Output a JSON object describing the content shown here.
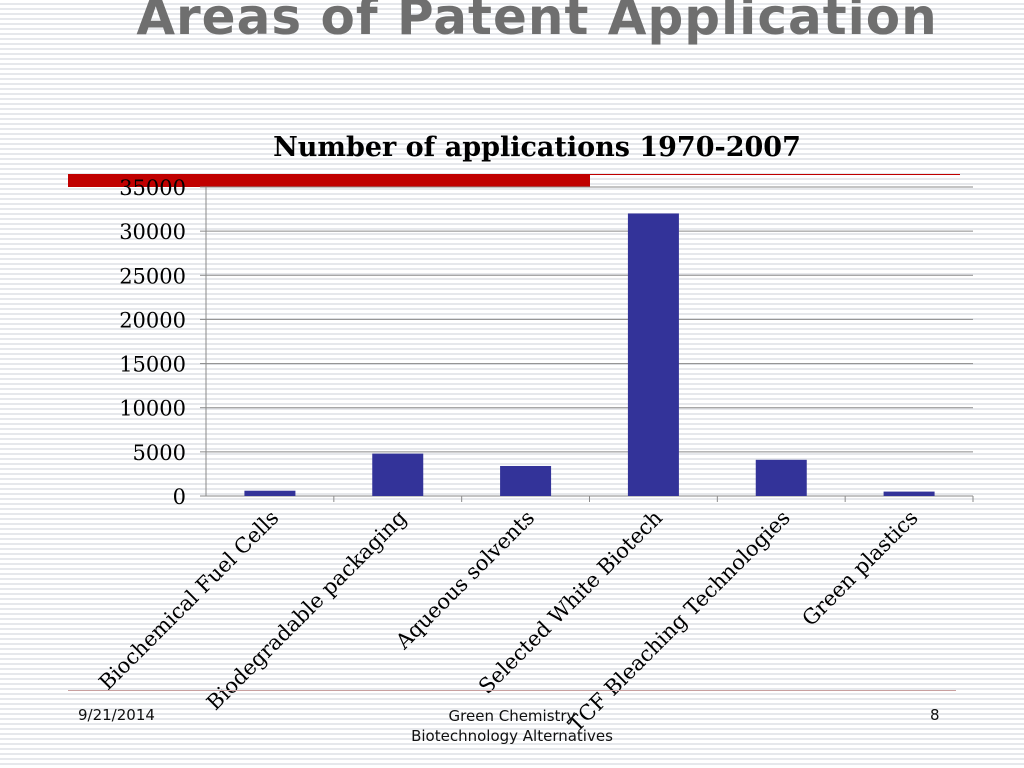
{
  "slide": {
    "title": "Areas of Patent Application",
    "footer_date": "9/21/2014",
    "footer_center_line1": "Green Chemistry",
    "footer_center_line2": "Biotechnology Alternatives",
    "page_number": "8"
  },
  "colors": {
    "accent": "#c00000",
    "bar": "#333399",
    "title_gray": "#6f6f6f"
  },
  "chart_data": {
    "type": "bar",
    "title": "Number of applications 1970-2007",
    "categories": [
      "Biochemical Fuel Cells",
      "Biodegradable packaging",
      "Aqueous solvents",
      "Selected White Biotech",
      "TCF Bleaching Technologies",
      "Green plastics"
    ],
    "values": [
      600,
      4800,
      3400,
      32000,
      4100,
      500
    ],
    "ylim": [
      0,
      35000
    ],
    "yticks": [
      0,
      5000,
      10000,
      15000,
      20000,
      25000,
      30000,
      35000
    ],
    "grid": true,
    "legend": "none"
  }
}
